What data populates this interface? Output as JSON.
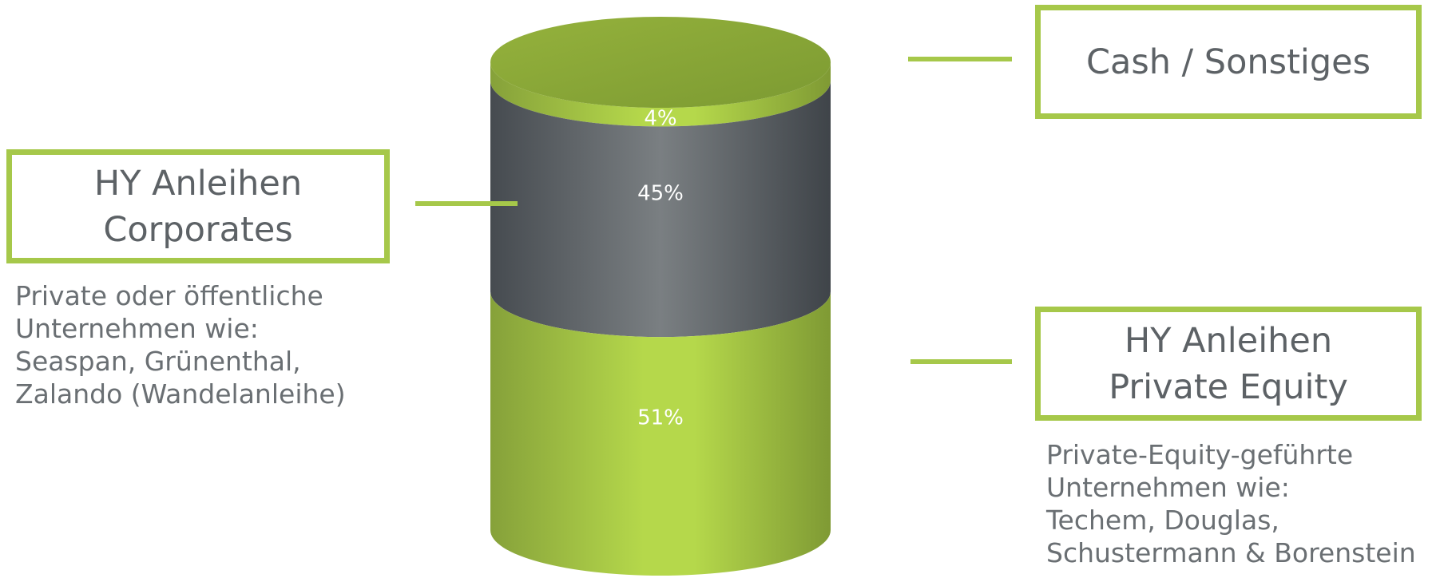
{
  "colors": {
    "green_dark": "#86a13a",
    "green_light": "#b5d84b",
    "gray_dark": "#464b50",
    "gray_light": "#7a7f82",
    "border": "#a6c84a"
  },
  "chart_data": {
    "type": "stacked-cylinder",
    "segments": [
      {
        "value": 51,
        "label": "51%",
        "category": "HY Anleihen Private Equity",
        "color": "green"
      },
      {
        "value": 45,
        "label": "45%",
        "category": "HY Anleihen Corporates",
        "color": "gray"
      },
      {
        "value": 4,
        "label": "4%",
        "category": "Cash / Sonstiges",
        "color": "green"
      }
    ]
  },
  "callouts": {
    "cash": {
      "title": "Cash / Sonstiges"
    },
    "corporates": {
      "title_line1": "HY Anleihen",
      "title_line2": "Corporates",
      "desc": [
        "Private oder öffentliche",
        "Unternehmen wie:",
        "Seaspan, Grünenthal,",
        "Zalando (Wandelanleihe)"
      ]
    },
    "private_equity": {
      "title_line1": "HY Anleihen",
      "title_line2": "Private Equity",
      "desc": [
        "Private-Equity-geführte",
        "Unternehmen wie:",
        "Techem, Douglas,",
        "Schustermann & Borenstein"
      ]
    }
  }
}
